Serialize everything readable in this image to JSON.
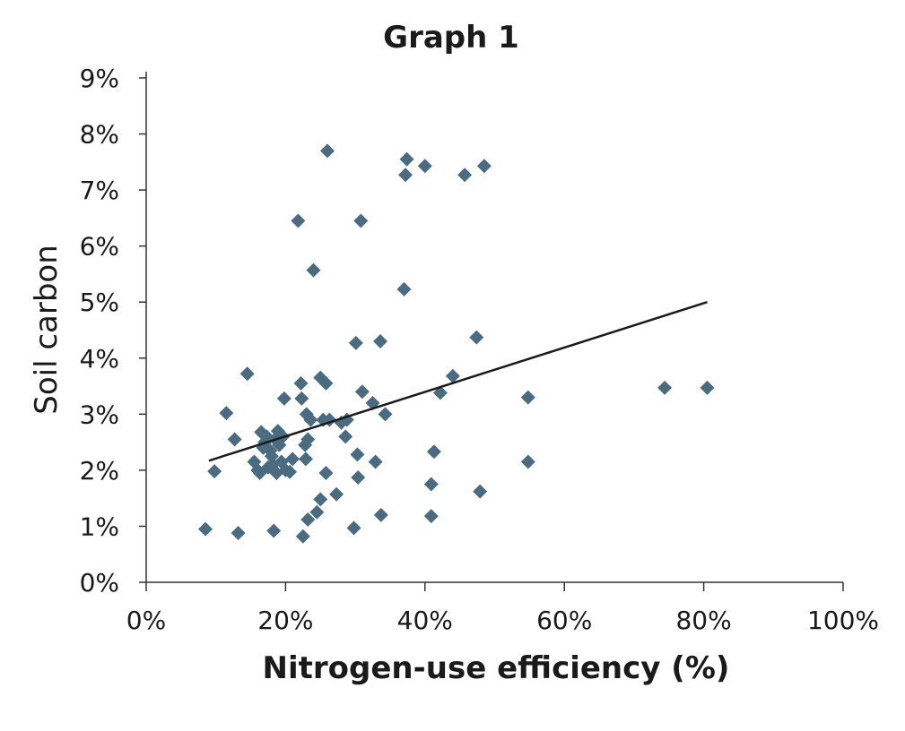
{
  "chart_data": {
    "type": "scatter",
    "title": "Graph 1",
    "xlabel": "Nitrogen-use efficiency (%)",
    "ylabel": "Soil carbon",
    "xlim": [
      0,
      100
    ],
    "ylim": [
      0,
      9
    ],
    "x_ticks": [
      0,
      20,
      40,
      60,
      80,
      100
    ],
    "x_tick_labels": [
      "0%",
      "20%",
      "40%",
      "60%",
      "80%",
      "100%"
    ],
    "y_ticks": [
      0,
      1,
      2,
      3,
      4,
      5,
      6,
      7,
      8,
      9
    ],
    "y_tick_labels": [
      "0%",
      "1%",
      "2%",
      "3%",
      "4%",
      "5%",
      "6%",
      "7%",
      "8%",
      "9%"
    ],
    "grid": false,
    "marker": "diamond",
    "marker_color": "#4a6b80",
    "line_color": "#1a1a1a",
    "series": [
      {
        "points": [
          [
            8.5,
            0.95
          ],
          [
            9.8,
            1.98
          ],
          [
            11.5,
            3.02
          ],
          [
            12.7,
            2.55
          ],
          [
            13.2,
            0.88
          ],
          [
            14.5,
            3.72
          ],
          [
            15.5,
            2.15
          ],
          [
            16.0,
            2.0
          ],
          [
            16.3,
            1.95
          ],
          [
            16.5,
            2.68
          ],
          [
            16.8,
            2.4
          ],
          [
            17.0,
            2.5
          ],
          [
            17.3,
            2.6
          ],
          [
            17.5,
            2.05
          ],
          [
            17.8,
            2.35
          ],
          [
            18.0,
            2.25
          ],
          [
            18.2,
            2.1
          ],
          [
            18.3,
            0.92
          ],
          [
            18.5,
            2.55
          ],
          [
            18.7,
            1.95
          ],
          [
            18.9,
            2.7
          ],
          [
            19.1,
            2.45
          ],
          [
            19.4,
            2.15
          ],
          [
            19.6,
            2.6
          ],
          [
            19.8,
            3.28
          ],
          [
            20.0,
            2.0
          ],
          [
            20.6,
            1.97
          ],
          [
            21.0,
            2.2
          ],
          [
            21.8,
            6.45
          ],
          [
            22.2,
            3.55
          ],
          [
            22.3,
            3.28
          ],
          [
            22.5,
            0.82
          ],
          [
            22.8,
            2.45
          ],
          [
            22.9,
            2.2
          ],
          [
            23.0,
            3.0
          ],
          [
            23.2,
            2.55
          ],
          [
            23.2,
            1.12
          ],
          [
            23.6,
            2.9
          ],
          [
            24.0,
            5.57
          ],
          [
            24.5,
            1.25
          ],
          [
            25.0,
            3.65
          ],
          [
            25.0,
            1.48
          ],
          [
            25.4,
            2.9
          ],
          [
            25.8,
            3.55
          ],
          [
            25.8,
            1.95
          ],
          [
            26.0,
            7.7
          ],
          [
            26.3,
            2.9
          ],
          [
            27.3,
            1.57
          ],
          [
            28.0,
            2.85
          ],
          [
            28.6,
            2.6
          ],
          [
            28.8,
            2.9
          ],
          [
            29.8,
            0.97
          ],
          [
            30.1,
            4.27
          ],
          [
            30.3,
            2.28
          ],
          [
            30.4,
            1.87
          ],
          [
            30.8,
            6.45
          ],
          [
            31.0,
            3.4
          ],
          [
            32.5,
            3.2
          ],
          [
            32.9,
            2.15
          ],
          [
            33.6,
            4.3
          ],
          [
            33.7,
            1.2
          ],
          [
            34.3,
            3.0
          ],
          [
            37.0,
            5.23
          ],
          [
            37.2,
            7.27
          ],
          [
            37.4,
            7.55
          ],
          [
            40.0,
            7.43
          ],
          [
            40.9,
            1.75
          ],
          [
            40.9,
            1.18
          ],
          [
            41.3,
            2.33
          ],
          [
            42.2,
            3.38
          ],
          [
            44.0,
            3.68
          ],
          [
            45.7,
            7.27
          ],
          [
            47.4,
            4.37
          ],
          [
            47.9,
            1.62
          ],
          [
            48.5,
            7.43
          ],
          [
            54.8,
            3.3
          ],
          [
            54.8,
            2.15
          ],
          [
            74.4,
            3.47
          ],
          [
            80.5,
            3.47
          ]
        ]
      }
    ],
    "trendline": {
      "x": [
        9,
        80.5
      ],
      "y": [
        2.17,
        5.0
      ]
    }
  }
}
